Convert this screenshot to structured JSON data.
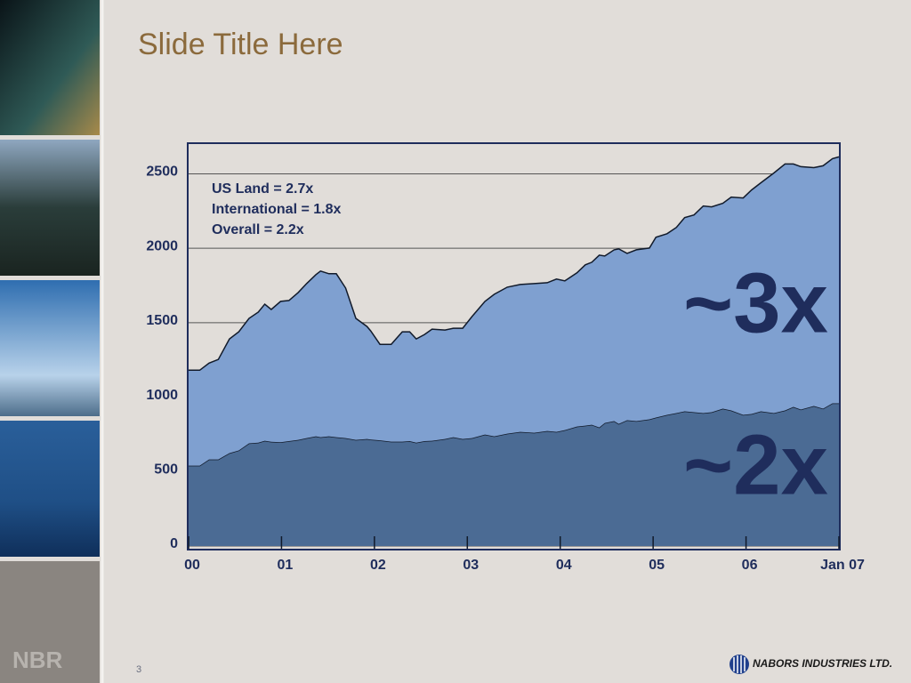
{
  "slide": {
    "title": "Slide Title Here",
    "page_number": "3",
    "side_label": "NBR",
    "logo_text": "NABORS INDUSTRIES LTD."
  },
  "chart_data": {
    "type": "area",
    "stacked": true,
    "x": [
      2000.0,
      2000.12,
      2000.22,
      2000.32,
      2000.44,
      2000.54,
      2000.65,
      2000.75,
      2000.82,
      2000.89,
      2000.99,
      2001.08,
      2001.18,
      2001.27,
      2001.37,
      2001.42,
      2001.51,
      2001.59,
      2001.69,
      2001.8,
      2001.92,
      2001.96,
      2002.06,
      2002.18,
      2002.3,
      2002.38,
      2002.45,
      2002.54,
      2002.62,
      2002.76,
      2002.85,
      2002.95,
      2003.05,
      2003.19,
      2003.29,
      2003.43,
      2003.57,
      2003.72,
      2003.86,
      2003.96,
      2004.05,
      2004.18,
      2004.27,
      2004.34,
      2004.42,
      2004.48,
      2004.58,
      2004.63,
      2004.72,
      2004.82,
      2004.96,
      2005.03,
      2005.15,
      2005.25,
      2005.34,
      2005.44,
      2005.54,
      2005.63,
      2005.75,
      2005.84,
      2005.97,
      2006.06,
      2006.16,
      2006.3,
      2006.42,
      2006.51,
      2006.59,
      2006.73,
      2006.83,
      2006.93,
      2007.0
    ],
    "series": [
      {
        "color": "#4b6b94",
        "values": [
          540,
          540,
          582,
          582,
          624,
          642,
          690,
          695,
          707,
          700,
          697,
          705,
          713,
          725,
          737,
          731,
          737,
          731,
          725,
          713,
          719,
          715,
          710,
          701,
          701,
          705,
          695,
          705,
          707,
          719,
          731,
          719,
          725,
          749,
          737,
          755,
          767,
          761,
          773,
          767,
          779,
          803,
          809,
          815,
          797,
          827,
          839,
          821,
          845,
          839,
          851,
          863,
          881,
          893,
          905,
          899,
          893,
          899,
          923,
          911,
          881,
          887,
          905,
          893,
          911,
          935,
          917,
          941,
          923,
          959,
          959
        ]
      },
      {
        "color": "#7fa0d0",
        "values": [
          641,
          641,
          647,
          671,
          767,
          797,
          839,
          876,
          918,
          889,
          946,
          944,
          990,
          1038,
          1086,
          1116,
          1092,
          1098,
          1008,
          816,
          756,
          730,
          645,
          654,
          738,
          734,
          696,
          716,
          750,
          732,
          732,
          744,
          816,
          894,
          954,
          984,
          990,
          1002,
          996,
          1026,
          1002,
          1032,
          1080,
          1091,
          1157,
          1121,
          1151,
          1175,
          1121,
          1151,
          1151,
          1211,
          1217,
          1247,
          1301,
          1325,
          1391,
          1379,
          1379,
          1433,
          1457,
          1505,
          1535,
          1613,
          1655,
          1631,
          1631,
          1601,
          1631,
          1643,
          1655
        ]
      }
    ],
    "xlim": [
      2000,
      2007
    ],
    "xticks": [
      {
        "value": 2000,
        "label": "00"
      },
      {
        "value": 2001,
        "label": "01"
      },
      {
        "value": 2002,
        "label": "02"
      },
      {
        "value": 2003,
        "label": "03"
      },
      {
        "value": 2004,
        "label": "04"
      },
      {
        "value": 2005,
        "label": "05"
      },
      {
        "value": 2006,
        "label": "06"
      },
      {
        "value": 2007,
        "label": "Jan 07"
      }
    ],
    "ylim": [
      0,
      2700
    ],
    "yticks": [
      0,
      500,
      1000,
      1500,
      2000,
      2500
    ],
    "grid": true,
    "annotations": [
      "US Land = 2.7x",
      "International = 1.8x",
      "Overall = 2.2x",
      "~3x",
      "~2x"
    ]
  }
}
